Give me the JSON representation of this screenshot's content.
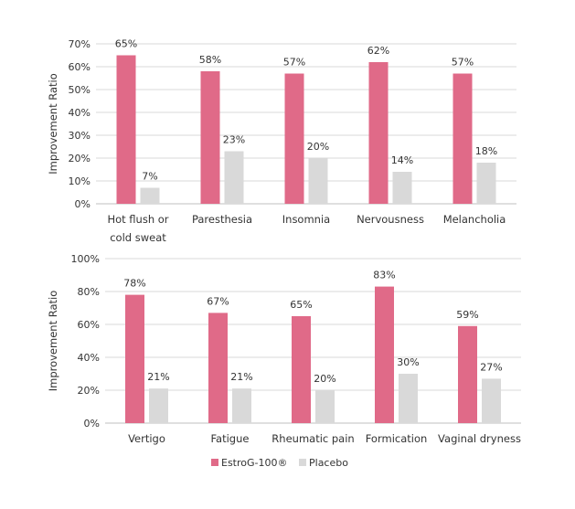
{
  "legend": {
    "series": [
      {
        "name": "EstroG-100®",
        "color": "#E06A88"
      },
      {
        "name": "Placebo",
        "color": "#D9D9D9"
      }
    ]
  },
  "chart_data": [
    {
      "type": "bar",
      "title": "",
      "xlabel": "",
      "ylabel": "Improvement Ratio",
      "ylim": [
        0,
        70
      ],
      "yticks": [
        0,
        10,
        20,
        30,
        40,
        50,
        60,
        70
      ],
      "ytick_labels": [
        "0%",
        "10%",
        "20%",
        "30%",
        "40%",
        "50%",
        "60%",
        "70%"
      ],
      "grid": true,
      "categories": [
        [
          "Hot flush or",
          "cold sweat"
        ],
        [
          "Paresthesia"
        ],
        [
          "Insomnia"
        ],
        [
          "Nervousness"
        ],
        [
          "Melancholia"
        ]
      ],
      "series": [
        {
          "name": "EstroG-100®",
          "color": "#E06A88",
          "values": [
            65,
            58,
            57,
            62,
            57
          ],
          "labels": [
            "65%",
            "58%",
            "57%",
            "62%",
            "57%"
          ]
        },
        {
          "name": "Placebo",
          "color": "#D9D9D9",
          "values": [
            7,
            23,
            20,
            14,
            18
          ],
          "labels": [
            "7%",
            "23%",
            "20%",
            "14%",
            "18%"
          ]
        }
      ]
    },
    {
      "type": "bar",
      "title": "",
      "xlabel": "",
      "ylabel": "Improvement Ratio",
      "ylim": [
        0,
        100
      ],
      "yticks": [
        0,
        20,
        40,
        60,
        80,
        100
      ],
      "ytick_labels": [
        "0%",
        "20%",
        "40%",
        "60%",
        "80%",
        "100%"
      ],
      "grid": true,
      "categories": [
        [
          "Vertigo"
        ],
        [
          "Fatigue"
        ],
        [
          "Rheumatic pain"
        ],
        [
          "Formication"
        ],
        [
          "Vaginal dryness"
        ]
      ],
      "series": [
        {
          "name": "EstroG-100®",
          "color": "#E06A88",
          "values": [
            78,
            67,
            65,
            83,
            59
          ],
          "labels": [
            "78%",
            "67%",
            "65%",
            "83%",
            "59%"
          ]
        },
        {
          "name": "Placebo",
          "color": "#D9D9D9",
          "values": [
            21,
            21,
            20,
            30,
            27
          ],
          "labels": [
            "21%",
            "21%",
            "20%",
            "30%",
            "27%"
          ]
        }
      ]
    }
  ]
}
